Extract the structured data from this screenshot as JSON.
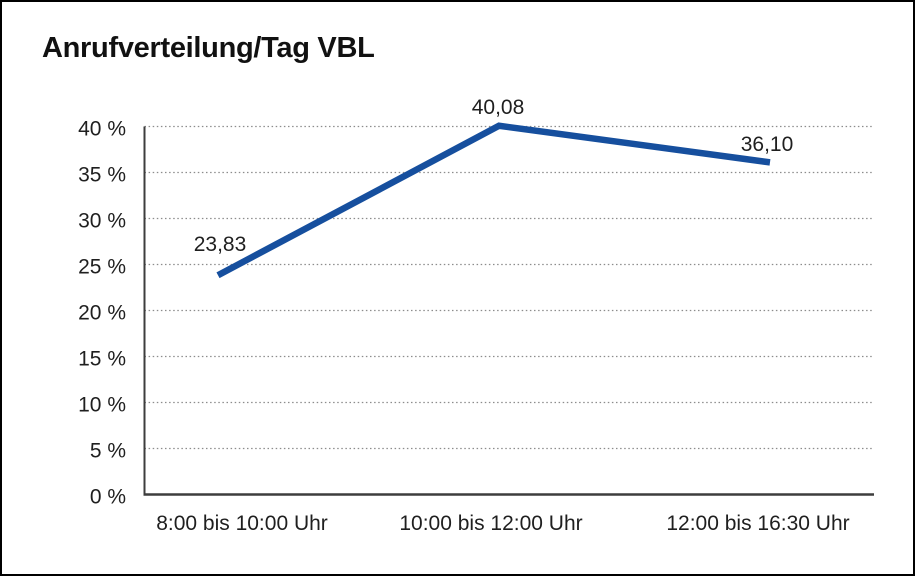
{
  "chart": {
    "title": "Anrufverteilung/Tag VBL"
  },
  "colors": {
    "line": "#164f9e",
    "grid": "#8c8c8c",
    "axis": "#3d3d3d",
    "text": "#1f1f1f",
    "border": "#000000",
    "background": "#ffffff"
  },
  "chart_data": {
    "type": "line",
    "title": "Anrufverteilung/Tag VBL",
    "categories": [
      "8:00 bis 10:00 Uhr",
      "10:00 bis 12:00 Uhr",
      "12:00 bis 16:30 Uhr"
    ],
    "values": [
      23.83,
      40.08,
      36.1
    ],
    "value_labels": [
      "23,83",
      "40,08",
      "36,10"
    ],
    "series_name": "Anrufverteilung/Tag VBL",
    "xlabel": "",
    "ylabel": "",
    "ylim": [
      0,
      40
    ],
    "yticks": [
      0,
      5,
      10,
      15,
      20,
      25,
      30,
      35,
      40
    ],
    "ytick_labels": [
      "0 %",
      "5 %",
      "10 %",
      "15 %",
      "20 %",
      "25 %",
      "30 %",
      "35 %",
      "40 %"
    ],
    "ytick_suffix": " %",
    "grid": "horizontal-dotted",
    "legend": "none",
    "line_color": "#164f9e"
  }
}
